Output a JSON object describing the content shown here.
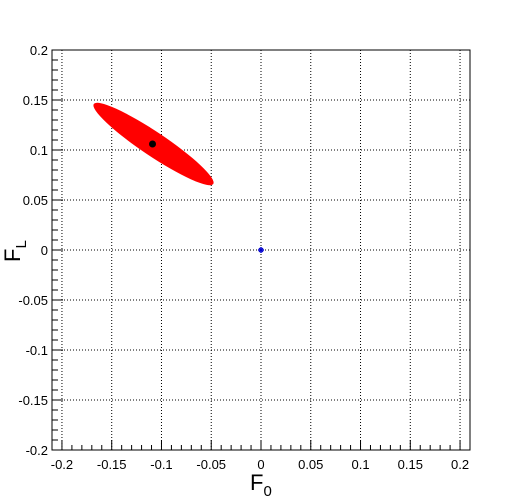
{
  "chart_data": {
    "type": "scatter",
    "title": "",
    "xlabel": {
      "main": "F",
      "sub": "0"
    },
    "ylabel": {
      "main": "F",
      "sub": "L"
    },
    "xlim": [
      -0.21,
      0.21
    ],
    "ylim": [
      -0.2,
      0.2
    ],
    "x_ticks": [
      -0.2,
      -0.15,
      -0.1,
      -0.05,
      0,
      0.05,
      0.1,
      0.15,
      0.2
    ],
    "x_tick_labels": [
      "-0.2",
      "-0.15",
      "-0.1",
      "-0.05",
      "0",
      "0.05",
      "0.1",
      "0.15",
      "0.2"
    ],
    "y_ticks": [
      -0.2,
      -0.15,
      -0.1,
      -0.05,
      0,
      0.05,
      0.1,
      0.15,
      0.2
    ],
    "y_tick_labels": [
      "-0.2",
      "-0.15",
      "-0.1",
      "-0.05",
      "0",
      "0.05",
      "0.1",
      "0.15",
      "0.2"
    ],
    "grid": true,
    "contour": {
      "color": "#ff0000",
      "center": [
        -0.109,
        0.106
      ],
      "endpoint_upper_left": [
        -0.168,
        0.146
      ],
      "endpoint_lower_right": [
        -0.048,
        0.066
      ],
      "minor_half_width": 0.012
    },
    "best_fit": {
      "x": -0.109,
      "y": 0.106,
      "color": "#000000"
    },
    "reference_point": {
      "x": 0.0,
      "y": 0.0,
      "color": "#0000cc"
    }
  }
}
